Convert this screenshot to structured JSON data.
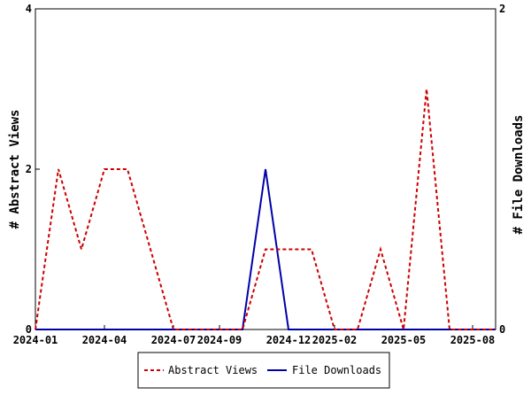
{
  "chart_data": {
    "type": "line",
    "x_tick_labels": [
      "2024-01",
      "2024-04",
      "2024-07",
      "2024-09",
      "2024-12",
      "2025-02",
      "2025-05",
      "2025-08"
    ],
    "x_tick_months": [
      "2024-01",
      "2024-04",
      "2024-07",
      "2024-09",
      "2024-12",
      "2025-02",
      "2025-05",
      "2025-08"
    ],
    "x_range": [
      "2024-01",
      "2025-09"
    ],
    "left_axis": {
      "label": "# Abstract Views",
      "ylim": [
        0,
        4
      ],
      "ticks": [
        0,
        2,
        4
      ]
    },
    "right_axis": {
      "label": "# File Downloads",
      "ylim": [
        0,
        2
      ],
      "ticks": [
        0,
        2
      ]
    },
    "legend_placement": "bottom",
    "series": [
      {
        "name": "Abstract Views",
        "axis": "left",
        "color": "#cc0000",
        "style": "dashed",
        "x": [
          "2024-01",
          "2024-02",
          "2024-03",
          "2024-04",
          "2024-05",
          "2024-06",
          "2024-07",
          "2024-08",
          "2024-09",
          "2024-10",
          "2024-11",
          "2024-12",
          "2025-01",
          "2025-02",
          "2025-03",
          "2025-04",
          "2025-05",
          "2025-06",
          "2025-07",
          "2025-08",
          "2025-09"
        ],
        "values": [
          0,
          2,
          1,
          2,
          2,
          1,
          0,
          0,
          0,
          0,
          1,
          1,
          1,
          0,
          0,
          1,
          0,
          3,
          0,
          0,
          0
        ]
      },
      {
        "name": "File Downloads",
        "axis": "right",
        "color": "#0000aa",
        "style": "solid",
        "x": [
          "2024-01",
          "2024-02",
          "2024-03",
          "2024-04",
          "2024-05",
          "2024-06",
          "2024-07",
          "2024-08",
          "2024-09",
          "2024-10",
          "2024-11",
          "2024-12",
          "2025-01",
          "2025-02",
          "2025-03",
          "2025-04",
          "2025-05",
          "2025-06",
          "2025-07",
          "2025-08",
          "2025-09"
        ],
        "values": [
          0,
          0,
          0,
          0,
          0,
          0,
          0,
          0,
          0,
          0,
          1,
          0,
          0,
          0,
          0,
          0,
          0,
          0,
          0,
          0,
          0
        ]
      }
    ]
  }
}
